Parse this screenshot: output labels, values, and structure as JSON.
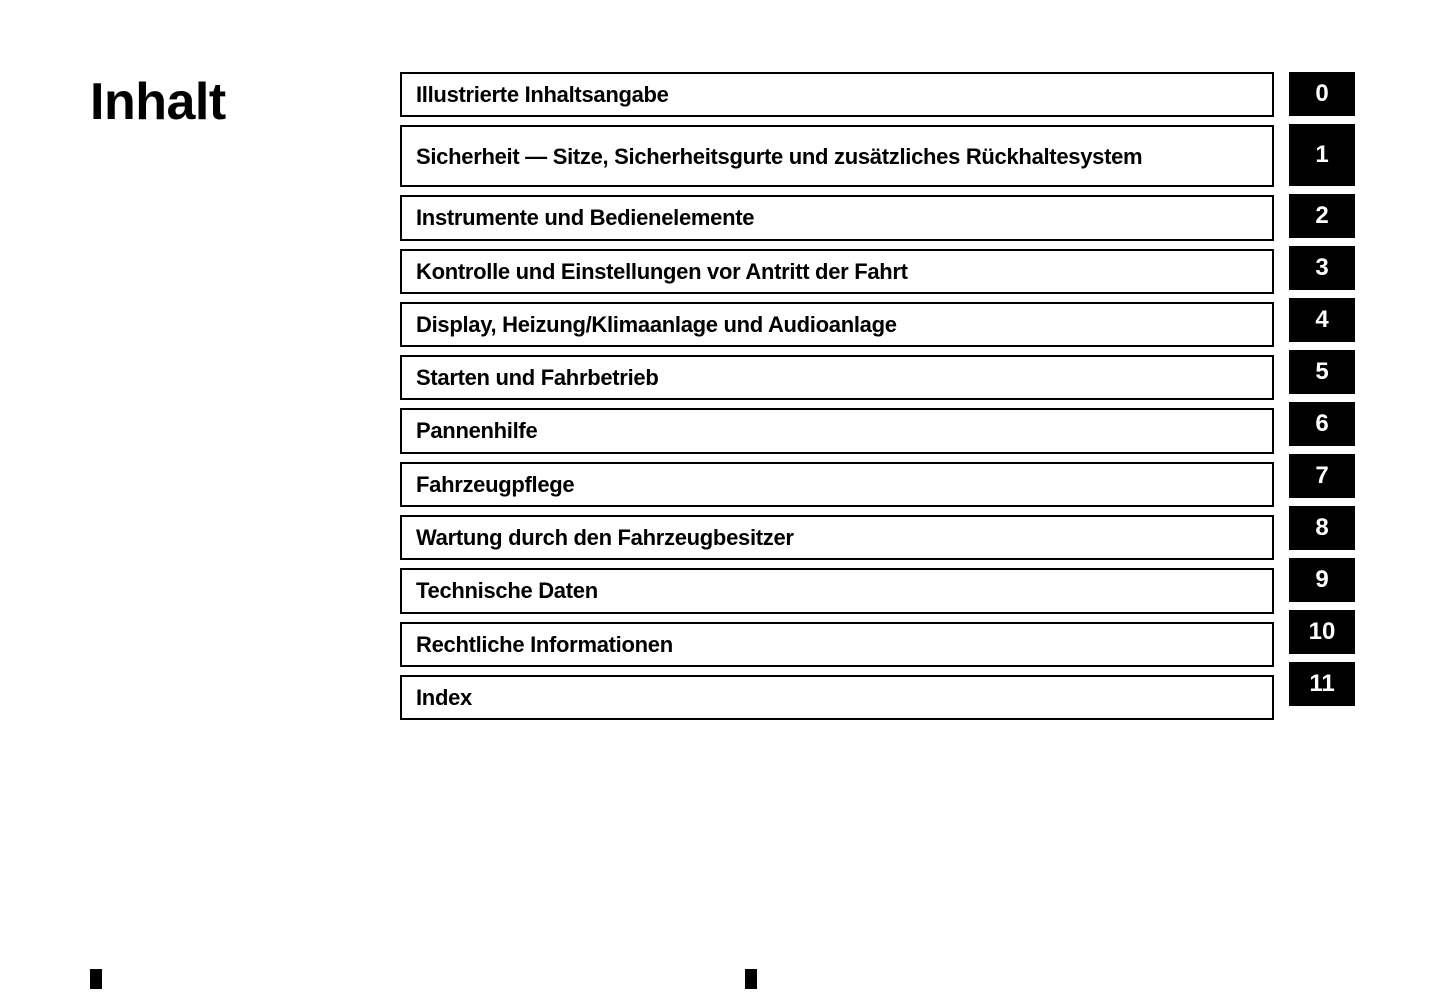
{
  "title": "Inhalt",
  "chapters": [
    {
      "label": "Illustrierte Inhaltsangabe",
      "number": "0",
      "tall": false
    },
    {
      "label": "Sicherheit — Sitze, Sicherheitsgurte und zusätzliches Rückhaltesystem",
      "number": "1",
      "tall": true
    },
    {
      "label": "Instrumente und Bedienelemente",
      "number": "2",
      "tall": false
    },
    {
      "label": "Kontrolle und Einstellungen vor Antritt der Fahrt",
      "number": "3",
      "tall": false
    },
    {
      "label": "Display, Heizung/Klimaanlage und Audioanlage",
      "number": "4",
      "tall": false
    },
    {
      "label": "Starten und Fahrbetrieb",
      "number": "5",
      "tall": false
    },
    {
      "label": "Pannenhilfe",
      "number": "6",
      "tall": false
    },
    {
      "label": "Fahrzeugpflege",
      "number": "7",
      "tall": false
    },
    {
      "label": "Wartung durch den Fahrzeugbesitzer",
      "number": "8",
      "tall": false
    },
    {
      "label": "Technische Daten",
      "number": "9",
      "tall": false
    },
    {
      "label": "Rechtliche Informationen",
      "number": "10",
      "tall": false
    },
    {
      "label": "Index",
      "number": "11",
      "tall": false
    }
  ],
  "styling": {
    "background_color": "#ffffff",
    "border_color": "#000000",
    "number_bg_color": "#000000",
    "number_text_color": "#ffffff",
    "title_fontsize": 52,
    "chapter_fontsize": 22,
    "number_fontsize": 24
  }
}
